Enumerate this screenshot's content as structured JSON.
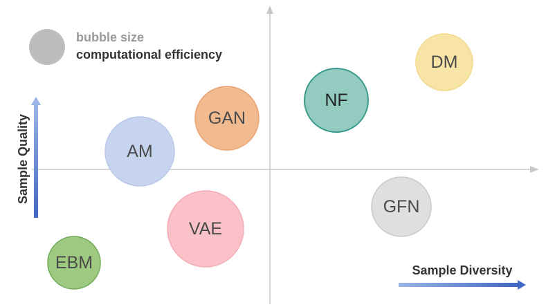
{
  "legend": {
    "line1": "bubble size",
    "line2": "computational efficiency"
  },
  "axes": {
    "y_label": "Sample Quality",
    "x_label": "Sample Diversity"
  },
  "nodes": [
    {
      "label": "DM"
    },
    {
      "label": "NF"
    },
    {
      "label": "GAN"
    },
    {
      "label": "AM"
    },
    {
      "label": "VAE"
    },
    {
      "label": "GFN"
    },
    {
      "label": "EBM"
    }
  ]
}
